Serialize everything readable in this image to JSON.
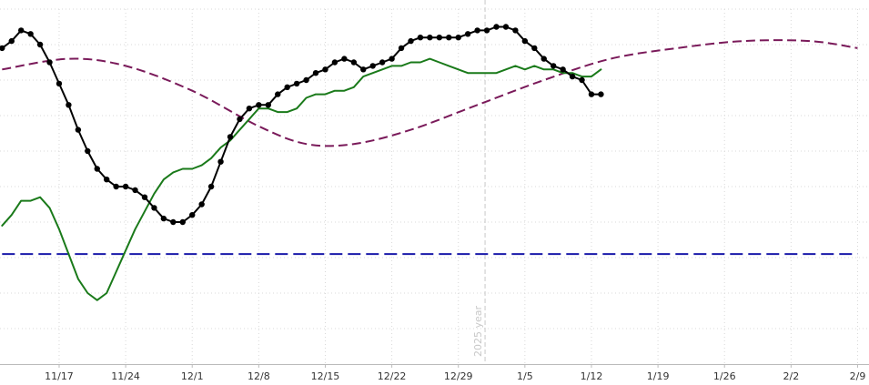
{
  "chart_data": {
    "type": "line",
    "title": "",
    "xlabel": "",
    "ylabel": "",
    "x_range": [
      "11/11",
      "2/9"
    ],
    "ylim": [
      0,
      100
    ],
    "grid": true,
    "legend": "none",
    "x_ticks": [
      "11/17",
      "11/24",
      "12/1",
      "12/8",
      "12/15",
      "12/22",
      "12/29",
      "1/5",
      "1/12",
      "1/19",
      "1/26",
      "2/2",
      "2/9"
    ],
    "year_marker": {
      "label": "2025 year",
      "at": "1/1"
    },
    "colors": {
      "black_series": "#000000",
      "green_series": "#1a7a1a",
      "purple_series": "#7a1a5a",
      "blue_series": "#1a1aaa",
      "grid": "#d8d8d8",
      "year_marker": "#c8c8c8"
    },
    "series": [
      {
        "color": "#000000",
        "style": "solid-markers",
        "points": [
          [
            "11/11",
            89
          ],
          [
            "11/12",
            91
          ],
          [
            "11/13",
            94
          ],
          [
            "11/14",
            93
          ],
          [
            "11/15",
            90
          ],
          [
            "11/16",
            85
          ],
          [
            "11/17",
            79
          ],
          [
            "11/18",
            73
          ],
          [
            "11/19",
            66
          ],
          [
            "11/20",
            60
          ],
          [
            "11/21",
            55
          ],
          [
            "11/22",
            52
          ],
          [
            "11/23",
            50
          ],
          [
            "11/24",
            50
          ],
          [
            "11/25",
            49
          ],
          [
            "11/26",
            47
          ],
          [
            "11/27",
            44
          ],
          [
            "11/28",
            41
          ],
          [
            "11/29",
            40
          ],
          [
            "11/30",
            40
          ],
          [
            "12/1",
            42
          ],
          [
            "12/2",
            45
          ],
          [
            "12/3",
            50
          ],
          [
            "12/4",
            57
          ],
          [
            "12/5",
            64
          ],
          [
            "12/6",
            69
          ],
          [
            "12/7",
            72
          ],
          [
            "12/8",
            73
          ],
          [
            "12/9",
            73
          ],
          [
            "12/10",
            76
          ],
          [
            "12/11",
            78
          ],
          [
            "12/12",
            79
          ],
          [
            "12/13",
            80
          ],
          [
            "12/14",
            82
          ],
          [
            "12/15",
            83
          ],
          [
            "12/16",
            85
          ],
          [
            "12/17",
            86
          ],
          [
            "12/18",
            85
          ],
          [
            "12/19",
            83
          ],
          [
            "12/20",
            84
          ],
          [
            "12/21",
            85
          ],
          [
            "12/22",
            86
          ],
          [
            "12/23",
            89
          ],
          [
            "12/24",
            91
          ],
          [
            "12/25",
            92
          ],
          [
            "12/26",
            92
          ],
          [
            "12/27",
            92
          ],
          [
            "12/28",
            92
          ],
          [
            "12/29",
            92
          ],
          [
            "12/30",
            93
          ],
          [
            "12/31",
            94
          ],
          [
            "1/1",
            94
          ],
          [
            "1/2",
            95
          ],
          [
            "1/3",
            95
          ],
          [
            "1/4",
            94
          ],
          [
            "1/5",
            91
          ],
          [
            "1/6",
            89
          ],
          [
            "1/7",
            86
          ],
          [
            "1/8",
            84
          ],
          [
            "1/9",
            83
          ],
          [
            "1/10",
            81
          ],
          [
            "1/11",
            80
          ],
          [
            "1/12",
            76
          ],
          [
            "1/13",
            76
          ]
        ]
      },
      {
        "color": "#1a7a1a",
        "style": "solid",
        "points": [
          [
            "11/11",
            39
          ],
          [
            "11/12",
            42
          ],
          [
            "11/13",
            46
          ],
          [
            "11/14",
            46
          ],
          [
            "11/15",
            47
          ],
          [
            "11/16",
            44
          ],
          [
            "11/17",
            38
          ],
          [
            "11/18",
            31
          ],
          [
            "11/19",
            24
          ],
          [
            "11/20",
            20
          ],
          [
            "11/21",
            18
          ],
          [
            "11/22",
            20
          ],
          [
            "11/23",
            26
          ],
          [
            "11/24",
            32
          ],
          [
            "11/25",
            38
          ],
          [
            "11/26",
            43
          ],
          [
            "11/27",
            48
          ],
          [
            "11/28",
            52
          ],
          [
            "11/29",
            54
          ],
          [
            "11/30",
            55
          ],
          [
            "12/1",
            55
          ],
          [
            "12/2",
            56
          ],
          [
            "12/3",
            58
          ],
          [
            "12/4",
            61
          ],
          [
            "12/5",
            63
          ],
          [
            "12/6",
            66
          ],
          [
            "12/7",
            69
          ],
          [
            "12/8",
            72
          ],
          [
            "12/9",
            72
          ],
          [
            "12/10",
            71
          ],
          [
            "12/11",
            71
          ],
          [
            "12/12",
            72
          ],
          [
            "12/13",
            75
          ],
          [
            "12/14",
            76
          ],
          [
            "12/15",
            76
          ],
          [
            "12/16",
            77
          ],
          [
            "12/17",
            77
          ],
          [
            "12/18",
            78
          ],
          [
            "12/19",
            81
          ],
          [
            "12/20",
            82
          ],
          [
            "12/21",
            83
          ],
          [
            "12/22",
            84
          ],
          [
            "12/23",
            84
          ],
          [
            "12/24",
            85
          ],
          [
            "12/25",
            85
          ],
          [
            "12/26",
            86
          ],
          [
            "12/27",
            85
          ],
          [
            "12/28",
            84
          ],
          [
            "12/29",
            83
          ],
          [
            "12/30",
            82
          ],
          [
            "12/31",
            82
          ],
          [
            "1/1",
            82
          ],
          [
            "1/2",
            82
          ],
          [
            "1/3",
            83
          ],
          [
            "1/4",
            84
          ],
          [
            "1/5",
            83
          ],
          [
            "1/6",
            84
          ],
          [
            "1/7",
            83
          ],
          [
            "1/8",
            83
          ],
          [
            "1/9",
            82
          ],
          [
            "1/10",
            82
          ],
          [
            "1/11",
            81
          ],
          [
            "1/12",
            81
          ],
          [
            "1/13",
            83
          ]
        ]
      },
      {
        "color": "#7a1a5a",
        "style": "dashed",
        "points": [
          [
            "11/11",
            83
          ],
          [
            "11/18",
            86
          ],
          [
            "11/24",
            84
          ],
          [
            "12/1",
            77
          ],
          [
            "12/8",
            67
          ],
          [
            "12/13",
            62
          ],
          [
            "12/18",
            62
          ],
          [
            "12/24",
            66
          ],
          [
            "12/31",
            73
          ],
          [
            "1/7",
            80
          ],
          [
            "1/14",
            86
          ],
          [
            "1/21",
            89
          ],
          [
            "1/28",
            91
          ],
          [
            "2/4",
            91
          ],
          [
            "2/9",
            89
          ]
        ]
      },
      {
        "color": "#1a1aaa",
        "style": "dashed",
        "points": [
          [
            "11/11",
            31
          ],
          [
            "2/9",
            31
          ]
        ]
      }
    ]
  }
}
